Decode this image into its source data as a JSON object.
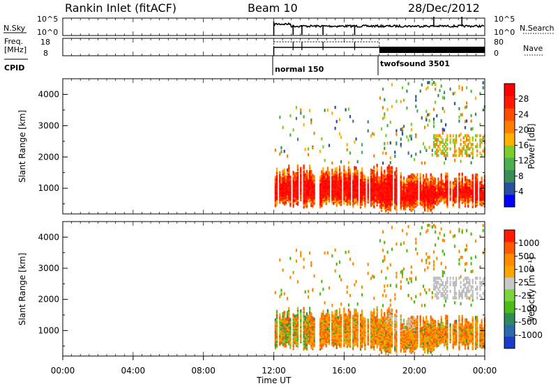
{
  "header": {
    "station": "Rankin Inlet (fitACF)",
    "beam": "Beam 10",
    "date": "28/Dec/2012"
  },
  "colors": {
    "power_scale": [
      "#0000ff",
      "#2850a0",
      "#3c8c5a",
      "#4caf50",
      "#7ccc2c",
      "#ffb000",
      "#ff7d00",
      "#ff4d00",
      "#ff1a00",
      "#ff0000"
    ],
    "velocity_scale": [
      "#1a3cc8",
      "#2b6bab",
      "#2e8b57",
      "#4cbb17",
      "#7cd43c",
      "#c8c8c8",
      "#ffa500",
      "#ff8c00",
      "#ff5a00",
      "#ff1a00"
    ],
    "ground_scatter": "#bdbdbd"
  },
  "chart_data": [
    {
      "id": "nsky_nsearch",
      "type": "line",
      "left_label": "N.Sky",
      "right_label": "N.Search",
      "left_ticks": [
        "10^5",
        "10^0"
      ],
      "right_ticks": [
        "10^5",
        "10^0"
      ],
      "x_start_hour": 12.0,
      "x_end_hour": 24.0,
      "note": "noise levels vs time"
    },
    {
      "id": "freq_nave",
      "type": "line",
      "left_label_lines": [
        "Freq.",
        "[MHz]"
      ],
      "right_label": "Nave",
      "left_ticks": [
        "18",
        "8"
      ],
      "right_ticks": [
        "80",
        "0"
      ],
      "segments": [
        {
          "start": 12.0,
          "end": 18.0,
          "label": "normal 150"
        },
        {
          "start": 18.0,
          "end": 24.0,
          "label": "twofsound 3501"
        }
      ]
    },
    {
      "id": "power",
      "type": "heatmap",
      "ylabel": "Slant Range [km]",
      "y_ticks": [
        1000,
        2000,
        3000,
        4000
      ],
      "ylim": [
        180,
        4500
      ],
      "colorbar_label": "Power [dB]",
      "colorbar_ticks": [
        "4",
        "8",
        "12",
        "16",
        "20",
        "24",
        "28"
      ],
      "colorbar_range": [
        0,
        32
      ]
    },
    {
      "id": "velocity",
      "type": "heatmap",
      "ylabel": "Slant Range [km]",
      "y_ticks": [
        1000,
        2000,
        3000,
        4000
      ],
      "ylim": [
        180,
        4500
      ],
      "colorbar_label": "Velocity [m s⁻¹]",
      "colorbar_ticks": [
        "-1000",
        "-500",
        "-100",
        "-25",
        "25",
        "100",
        "500",
        "1000"
      ]
    }
  ],
  "time_axis": {
    "xlabel": "Time UT",
    "ticks": [
      "00:00",
      "04:00",
      "08:00",
      "12:00",
      "16:00",
      "20:00",
      "00:00"
    ]
  },
  "cpid_label": "CPID"
}
